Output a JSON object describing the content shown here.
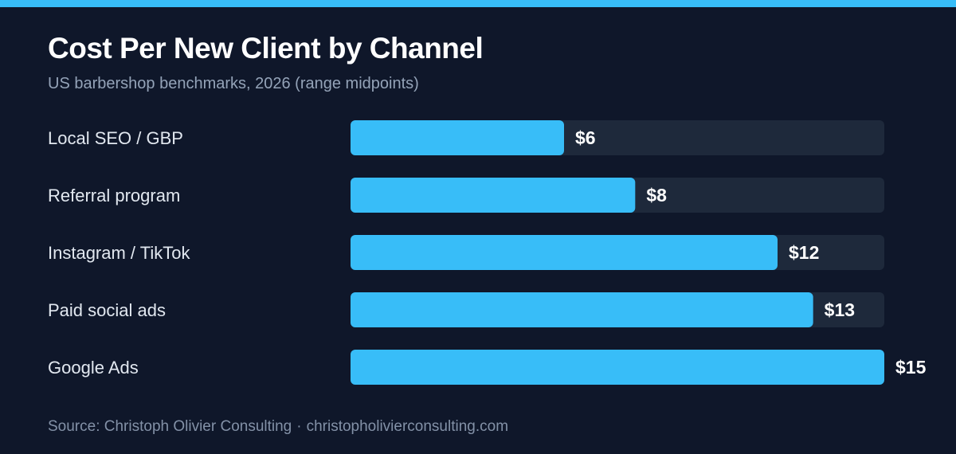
{
  "colors": {
    "background": "#0f172a",
    "accent": "#38bdf8",
    "track": "#1e293b",
    "title": "#ffffff",
    "label": "#e2e8f0",
    "muted": "#94a3b8"
  },
  "source": {
    "name": "Source: Christoph Olivier Consulting",
    "separator": "·",
    "url": "christopholivierconsulting.com"
  },
  "chart_data": {
    "type": "bar",
    "orientation": "horizontal",
    "title": "Cost Per New Client by Channel",
    "subtitle": "US barbershop benchmarks, 2026 (range midpoints)",
    "xlabel": "",
    "ylabel": "",
    "xlim": [
      0,
      15
    ],
    "grid": false,
    "value_prefix": "$",
    "categories": [
      "Local SEO / GBP",
      "Referral program",
      "Instagram / TikTok",
      "Paid social ads",
      "Google Ads"
    ],
    "values": [
      6,
      8,
      12,
      13,
      15
    ],
    "data_labels": [
      "$6",
      "$8",
      "$12",
      "$13",
      "$15"
    ]
  }
}
